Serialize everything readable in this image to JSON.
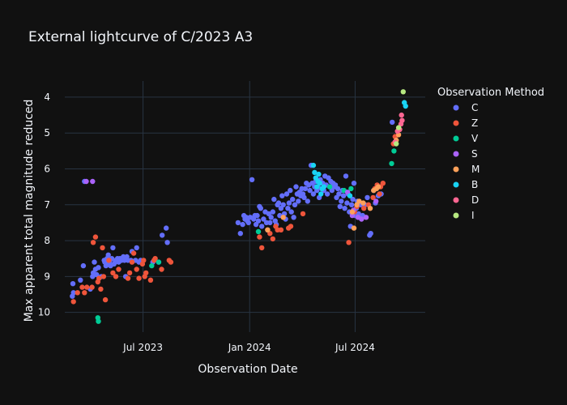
{
  "chart_data": {
    "type": "scatter",
    "title": "External lightcurve of C/2023 A3",
    "xlabel": "Observation Date",
    "ylabel": "Max apparent total magnitude reduced",
    "xlim": [
      "2023-02-16",
      "2024-10-30"
    ],
    "ylim": [
      10.55,
      3.55
    ],
    "y_reversed": true,
    "x_ticks": [
      {
        "date": "2023-07-01",
        "label": "Jul 2023"
      },
      {
        "date": "2024-01-01",
        "label": "Jan 2024"
      },
      {
        "date": "2024-07-01",
        "label": "Jul 2024"
      }
    ],
    "y_ticks": [
      4,
      5,
      6,
      7,
      8,
      9,
      10
    ],
    "grid": true,
    "legend": {
      "title": "Observation Method",
      "placement": "right"
    },
    "background": "#111111",
    "grid_color": "#283442",
    "series": [
      {
        "name": "C",
        "color": "#636efa",
        "points": [
          [
            "2023-03-01",
            9.55
          ],
          [
            "2023-03-02",
            9.2
          ],
          [
            "2023-03-03",
            9.45
          ],
          [
            "2023-03-15",
            9.1
          ],
          [
            "2023-03-20",
            8.7
          ],
          [
            "2023-03-22",
            6.35
          ],
          [
            "2023-04-01",
            9.35
          ],
          [
            "2023-04-05",
            9.0
          ],
          [
            "2023-04-06",
            8.9
          ],
          [
            "2023-04-08",
            8.6
          ],
          [
            "2023-04-10",
            8.8
          ],
          [
            "2023-04-12",
            8.95
          ],
          [
            "2023-04-15",
            8.75
          ],
          [
            "2023-04-20",
            9.0
          ],
          [
            "2023-04-25",
            8.55
          ],
          [
            "2023-04-26",
            8.6
          ],
          [
            "2023-04-28",
            8.7
          ],
          [
            "2023-04-30",
            8.5
          ],
          [
            "2023-05-01",
            8.65
          ],
          [
            "2023-05-02",
            8.4
          ],
          [
            "2023-05-04",
            8.6
          ],
          [
            "2023-05-05",
            8.55
          ],
          [
            "2023-05-06",
            8.7
          ],
          [
            "2023-05-08",
            8.5
          ],
          [
            "2023-05-10",
            8.2
          ],
          [
            "2023-05-12",
            8.65
          ],
          [
            "2023-05-14",
            8.6
          ],
          [
            "2023-05-15",
            8.55
          ],
          [
            "2023-05-18",
            8.5
          ],
          [
            "2023-05-20",
            8.6
          ],
          [
            "2023-05-22",
            8.5
          ],
          [
            "2023-05-25",
            8.55
          ],
          [
            "2023-05-28",
            8.45
          ],
          [
            "2023-05-30",
            8.55
          ],
          [
            "2023-06-01",
            9.0
          ],
          [
            "2023-06-03",
            8.45
          ],
          [
            "2023-06-05",
            8.55
          ],
          [
            "2023-06-10",
            8.55
          ],
          [
            "2023-06-12",
            8.3
          ],
          [
            "2023-06-18",
            8.55
          ],
          [
            "2023-06-20",
            8.2
          ],
          [
            "2023-06-24",
            8.6
          ],
          [
            "2023-06-27",
            8.55
          ],
          [
            "2023-07-18",
            8.6
          ],
          [
            "2023-07-28",
            8.6
          ],
          [
            "2023-08-03",
            7.85
          ],
          [
            "2023-08-10",
            7.65
          ],
          [
            "2023-08-12",
            8.05
          ],
          [
            "2023-12-12",
            7.5
          ],
          [
            "2023-12-16",
            7.8
          ],
          [
            "2023-12-20",
            7.55
          ],
          [
            "2023-12-22",
            7.3
          ],
          [
            "2023-12-24",
            7.4
          ],
          [
            "2023-12-26",
            7.35
          ],
          [
            "2023-12-28",
            7.45
          ],
          [
            "2023-12-30",
            7.5
          ],
          [
            "2024-01-02",
            7.35
          ],
          [
            "2024-01-05",
            6.3
          ],
          [
            "2024-01-08",
            7.4
          ],
          [
            "2024-01-10",
            7.3
          ],
          [
            "2024-01-12",
            7.55
          ],
          [
            "2024-01-14",
            7.3
          ],
          [
            "2024-01-16",
            7.45
          ],
          [
            "2024-01-18",
            7.05
          ],
          [
            "2024-01-20",
            7.1
          ],
          [
            "2024-01-22",
            7.6
          ],
          [
            "2024-01-25",
            7.4
          ],
          [
            "2024-01-28",
            7.2
          ],
          [
            "2024-01-30",
            7.5
          ],
          [
            "2024-02-01",
            7.7
          ],
          [
            "2024-02-03",
            7.25
          ],
          [
            "2024-02-05",
            7.5
          ],
          [
            "2024-02-07",
            7.35
          ],
          [
            "2024-02-10",
            7.2
          ],
          [
            "2024-02-12",
            6.85
          ],
          [
            "2024-02-14",
            7.45
          ],
          [
            "2024-02-16",
            7.55
          ],
          [
            "2024-02-18",
            7.0
          ],
          [
            "2024-02-20",
            6.95
          ],
          [
            "2024-02-22",
            7.3
          ],
          [
            "2024-02-24",
            7.1
          ],
          [
            "2024-02-26",
            6.75
          ],
          [
            "2024-02-28",
            7.0
          ],
          [
            "2024-03-01",
            7.25
          ],
          [
            "2024-03-03",
            7.4
          ],
          [
            "2024-03-05",
            6.7
          ],
          [
            "2024-03-07",
            7.1
          ],
          [
            "2024-03-09",
            6.95
          ],
          [
            "2024-03-11",
            6.6
          ],
          [
            "2024-03-13",
            7.2
          ],
          [
            "2024-03-15",
            6.85
          ],
          [
            "2024-03-17",
            7.35
          ],
          [
            "2024-03-19",
            7.0
          ],
          [
            "2024-03-21",
            6.5
          ],
          [
            "2024-03-23",
            6.7
          ],
          [
            "2024-03-25",
            6.9
          ],
          [
            "2024-03-27",
            6.65
          ],
          [
            "2024-03-29",
            6.75
          ],
          [
            "2024-03-31",
            6.55
          ],
          [
            "2024-04-02",
            6.7
          ],
          [
            "2024-04-04",
            6.8
          ],
          [
            "2024-04-06",
            6.55
          ],
          [
            "2024-04-08",
            6.4
          ],
          [
            "2024-04-10",
            6.9
          ],
          [
            "2024-04-12",
            6.45
          ],
          [
            "2024-04-14",
            6.6
          ],
          [
            "2024-04-16",
            5.9
          ],
          [
            "2024-04-18",
            6.4
          ],
          [
            "2024-04-20",
            6.7
          ],
          [
            "2024-04-22",
            6.5
          ],
          [
            "2024-04-24",
            6.35
          ],
          [
            "2024-04-26",
            6.6
          ],
          [
            "2024-04-28",
            6.5
          ],
          [
            "2024-04-30",
            6.8
          ],
          [
            "2024-05-02",
            6.3
          ],
          [
            "2024-05-04",
            6.55
          ],
          [
            "2024-05-06",
            6.4
          ],
          [
            "2024-05-08",
            6.6
          ],
          [
            "2024-05-10",
            6.2
          ],
          [
            "2024-05-12",
            6.45
          ],
          [
            "2024-05-14",
            6.7
          ],
          [
            "2024-05-16",
            6.25
          ],
          [
            "2024-05-18",
            6.5
          ],
          [
            "2024-05-20",
            6.35
          ],
          [
            "2024-05-22",
            6.6
          ],
          [
            "2024-05-24",
            6.4
          ],
          [
            "2024-05-26",
            6.5
          ],
          [
            "2024-05-28",
            6.45
          ],
          [
            "2024-05-30",
            6.8
          ],
          [
            "2024-06-01",
            6.55
          ],
          [
            "2024-06-03",
            6.7
          ],
          [
            "2024-06-05",
            7.05
          ],
          [
            "2024-06-07",
            6.9
          ],
          [
            "2024-06-09",
            6.6
          ],
          [
            "2024-06-11",
            6.75
          ],
          [
            "2024-06-13",
            7.1
          ],
          [
            "2024-06-15",
            6.2
          ],
          [
            "2024-06-17",
            6.95
          ],
          [
            "2024-06-19",
            6.7
          ],
          [
            "2024-06-21",
            7.2
          ],
          [
            "2024-06-23",
            7.6
          ],
          [
            "2024-06-25",
            7.0
          ],
          [
            "2024-06-27",
            6.85
          ],
          [
            "2024-06-29",
            6.4
          ],
          [
            "2024-07-01",
            7.3
          ],
          [
            "2024-07-03",
            7.1
          ],
          [
            "2024-07-05",
            6.9
          ],
          [
            "2024-07-07",
            7.25
          ],
          [
            "2024-07-10",
            7.0
          ],
          [
            "2024-07-14",
            7.3
          ],
          [
            "2024-07-18",
            7.0
          ],
          [
            "2024-07-22",
            6.8
          ],
          [
            "2024-07-26",
            7.85
          ],
          [
            "2024-07-28",
            7.8
          ],
          [
            "2024-08-02",
            6.6
          ],
          [
            "2024-08-05",
            6.95
          ],
          [
            "2024-08-10",
            6.75
          ],
          [
            "2024-08-15",
            6.7
          ],
          [
            "2024-09-03",
            4.7
          ]
        ]
      },
      {
        "name": "Z",
        "color": "#ef553b",
        "points": [
          [
            "2023-03-03",
            9.7
          ],
          [
            "2023-03-10",
            9.45
          ],
          [
            "2023-03-18",
            9.3
          ],
          [
            "2023-03-22",
            9.45
          ],
          [
            "2023-03-26",
            9.3
          ],
          [
            "2023-04-04",
            9.3
          ],
          [
            "2023-04-06",
            8.05
          ],
          [
            "2023-04-10",
            7.9
          ],
          [
            "2023-04-14",
            9.15
          ],
          [
            "2023-04-16",
            9.05
          ],
          [
            "2023-04-19",
            9.35
          ],
          [
            "2023-04-22",
            8.2
          ],
          [
            "2023-04-24",
            9.0
          ],
          [
            "2023-04-27",
            9.65
          ],
          [
            "2023-05-03",
            8.55
          ],
          [
            "2023-05-10",
            8.9
          ],
          [
            "2023-05-15",
            9.0
          ],
          [
            "2023-05-20",
            8.8
          ],
          [
            "2023-06-05",
            9.05
          ],
          [
            "2023-06-08",
            8.9
          ],
          [
            "2023-06-12",
            8.6
          ],
          [
            "2023-06-15",
            8.35
          ],
          [
            "2023-06-20",
            8.8
          ],
          [
            "2023-06-24",
            9.05
          ],
          [
            "2023-06-30",
            8.65
          ],
          [
            "2023-07-02",
            8.55
          ],
          [
            "2023-07-04",
            9.0
          ],
          [
            "2023-07-06",
            8.9
          ],
          [
            "2023-07-14",
            9.1
          ],
          [
            "2023-07-20",
            8.55
          ],
          [
            "2023-07-22",
            8.5
          ],
          [
            "2023-08-15",
            8.55
          ],
          [
            "2023-08-18",
            8.6
          ],
          [
            "2023-08-02",
            8.8
          ],
          [
            "2024-01-18",
            7.9
          ],
          [
            "2024-01-22",
            8.2
          ],
          [
            "2024-02-05",
            7.8
          ],
          [
            "2024-02-10",
            7.95
          ],
          [
            "2024-02-15",
            7.6
          ],
          [
            "2024-02-18",
            7.7
          ],
          [
            "2024-02-24",
            7.7
          ],
          [
            "2024-03-08",
            7.65
          ],
          [
            "2024-03-12",
            7.6
          ],
          [
            "2024-04-02",
            7.25
          ],
          [
            "2024-06-20",
            8.05
          ],
          [
            "2024-06-30",
            7.2
          ],
          [
            "2024-07-04",
            7.05
          ],
          [
            "2024-07-16",
            7.1
          ],
          [
            "2024-07-24",
            7.0
          ],
          [
            "2024-08-01",
            6.8
          ],
          [
            "2024-08-04",
            6.55
          ],
          [
            "2024-08-08",
            6.45
          ],
          [
            "2024-08-12",
            6.7
          ],
          [
            "2024-08-14",
            6.5
          ],
          [
            "2024-08-18",
            6.4
          ],
          [
            "2024-09-05",
            5.3
          ],
          [
            "2024-09-08",
            5.1
          ]
        ]
      },
      {
        "name": "V",
        "color": "#00cc96",
        "points": [
          [
            "2023-04-15",
            10.25
          ],
          [
            "2023-04-14",
            10.15
          ],
          [
            "2023-07-16",
            8.7
          ],
          [
            "2023-07-28",
            8.6
          ],
          [
            "2024-01-16",
            7.75
          ],
          [
            "2024-05-18",
            6.5
          ],
          [
            "2024-06-12",
            6.6
          ],
          [
            "2024-06-24",
            6.55
          ],
          [
            "2024-09-02",
            5.85
          ],
          [
            "2024-09-06",
            5.5
          ]
        ]
      },
      {
        "name": "S",
        "color": "#ab63fa",
        "points": [
          [
            "2023-03-25",
            6.35
          ],
          [
            "2023-04-05",
            6.35
          ],
          [
            "2024-06-18",
            6.65
          ],
          [
            "2024-06-26",
            7.3
          ],
          [
            "2024-07-06",
            7.35
          ],
          [
            "2024-07-12",
            7.4
          ],
          [
            "2024-07-20",
            7.35
          ],
          [
            "2024-08-06",
            6.9
          ],
          [
            "2024-06-28",
            7.15
          ]
        ]
      },
      {
        "name": "M",
        "color": "#ffa15a",
        "points": [
          [
            "2024-02-01",
            7.7
          ],
          [
            "2024-02-28",
            7.35
          ],
          [
            "2024-06-26",
            7.2
          ],
          [
            "2024-06-29",
            7.65
          ],
          [
            "2024-07-04",
            7.0
          ],
          [
            "2024-07-08",
            6.9
          ],
          [
            "2024-07-15",
            6.95
          ],
          [
            "2024-07-27",
            7.1
          ],
          [
            "2024-08-02",
            6.6
          ],
          [
            "2024-08-07",
            6.55
          ],
          [
            "2024-08-10",
            6.5
          ],
          [
            "2024-09-10",
            5.2
          ],
          [
            "2024-09-14",
            5.05
          ]
        ]
      },
      {
        "name": "B",
        "color": "#19d3f3",
        "points": [
          [
            "2024-04-20",
            5.9
          ],
          [
            "2024-04-22",
            6.1
          ],
          [
            "2024-04-24",
            6.25
          ],
          [
            "2024-04-26",
            6.5
          ],
          [
            "2024-04-28",
            6.35
          ],
          [
            "2024-04-29",
            6.15
          ],
          [
            "2024-05-01",
            6.4
          ],
          [
            "2024-05-03",
            6.7
          ],
          [
            "2024-05-05",
            6.55
          ],
          [
            "2024-05-08",
            6.5
          ],
          [
            "2024-06-22",
            6.75
          ],
          [
            "2024-09-24",
            4.15
          ],
          [
            "2024-09-26",
            4.25
          ]
        ]
      },
      {
        "name": "D",
        "color": "#ff6692",
        "points": [
          [
            "2024-09-12",
            4.95
          ],
          [
            "2024-09-16",
            4.9
          ],
          [
            "2024-09-18",
            4.75
          ],
          [
            "2024-09-20",
            4.65
          ],
          [
            "2024-09-19",
            4.5
          ],
          [
            "2024-09-08",
            5.25
          ]
        ]
      },
      {
        "name": "I",
        "color": "#b6e880",
        "points": [
          [
            "2024-09-22",
            3.85
          ],
          [
            "2024-09-14",
            4.85
          ],
          [
            "2024-09-10",
            5.3
          ]
        ]
      }
    ]
  }
}
